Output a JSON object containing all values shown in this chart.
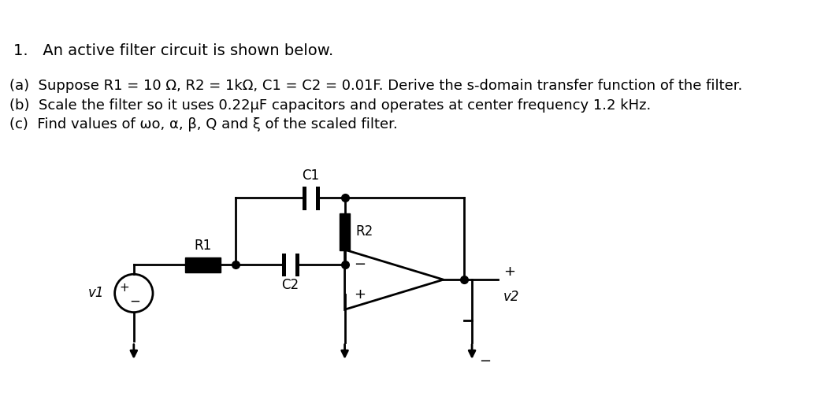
{
  "title_text": "1.   An active filter circuit is shown below.",
  "line_a": "(a)  Suppose R1 = 10 Ω, R2 = 1kΩ, C1 = C2 = 0.01F. Derive the s-domain transfer function of the filter.",
  "line_b": "(b)  Scale the filter so it uses 0.22μF capacitors and operates at center frequency 1.2 kHz.",
  "line_c": "(c)  Find values of ωo, α, β, Q and ξ of the scaled filter.",
  "background": "#ffffff",
  "text_color": "#000000",
  "font_size_title": 14,
  "font_size_body": 13,
  "circuit_color": "#000000"
}
